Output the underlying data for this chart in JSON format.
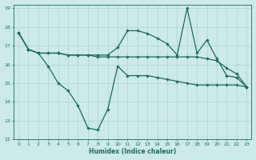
{
  "xlabel": "Humidex (Indice chaleur)",
  "ylabel": "",
  "bg_color": "#cceae7",
  "grid_color": "#b0d8d4",
  "line_color": "#1a6b60",
  "xlim_min": -0.5,
  "xlim_max": 23.5,
  "ylim_min": 12,
  "ylim_max": 19.2,
  "yticks": [
    12,
    13,
    14,
    15,
    16,
    17,
    18,
    19
  ],
  "xticks": [
    0,
    1,
    2,
    3,
    4,
    5,
    6,
    7,
    8,
    9,
    10,
    11,
    12,
    13,
    14,
    15,
    16,
    17,
    18,
    19,
    20,
    21,
    22,
    23
  ],
  "line1_x": [
    0,
    1,
    2,
    3,
    4,
    5,
    6,
    7,
    8,
    9,
    10,
    11,
    12,
    13,
    14,
    15,
    16,
    17,
    18,
    19,
    20,
    21,
    22,
    23
  ],
  "line1_y": [
    17.7,
    16.8,
    16.6,
    16.6,
    16.6,
    16.5,
    16.5,
    16.5,
    16.4,
    16.4,
    16.4,
    16.4,
    16.4,
    16.4,
    16.4,
    16.4,
    16.4,
    16.4,
    16.4,
    16.3,
    16.2,
    15.8,
    15.5,
    14.8
  ],
  "line2_x": [
    0,
    1,
    2,
    3,
    4,
    5,
    6,
    7,
    8,
    9,
    10,
    11,
    12,
    13,
    14,
    15,
    16,
    17,
    18,
    19,
    20,
    21,
    22,
    23
  ],
  "line2_y": [
    17.7,
    16.8,
    16.6,
    15.9,
    15.0,
    14.6,
    13.8,
    12.6,
    12.5,
    13.6,
    15.9,
    15.4,
    15.4,
    15.4,
    15.3,
    15.2,
    15.1,
    15.0,
    14.9,
    14.9,
    14.9,
    14.9,
    14.9,
    14.8
  ],
  "line3_x": [
    0,
    1,
    2,
    3,
    4,
    5,
    6,
    7,
    8,
    9,
    10,
    11,
    12,
    13,
    14,
    15,
    16,
    17,
    18,
    19,
    20,
    21,
    22,
    23
  ],
  "line3_y": [
    17.7,
    16.8,
    16.6,
    16.6,
    16.6,
    16.5,
    16.5,
    16.5,
    16.5,
    16.5,
    16.9,
    17.8,
    17.8,
    17.65,
    17.4,
    17.1,
    16.5,
    19.0,
    16.6,
    17.3,
    16.3,
    15.4,
    15.3,
    14.8
  ]
}
